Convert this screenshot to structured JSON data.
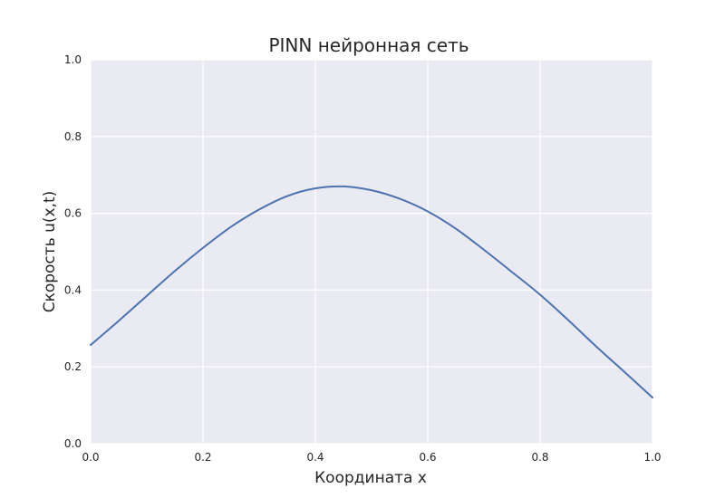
{
  "chart_data": {
    "type": "line",
    "title": "PINN нейронная сеть",
    "xlabel": "Координата x",
    "ylabel": "Скорость u(x,t)",
    "xlim": [
      0,
      1
    ],
    "ylim": [
      0,
      1
    ],
    "xticks": [
      "0.0",
      "0.2",
      "0.4",
      "0.6",
      "0.8",
      "1.0"
    ],
    "yticks": [
      "0.0",
      "0.2",
      "0.4",
      "0.6",
      "0.8",
      "1.0"
    ],
    "grid": true,
    "background_color": "#eaeaf2",
    "series": [
      {
        "color": "#4c72b0",
        "x": [
          0.0,
          0.05,
          0.1,
          0.15,
          0.2,
          0.25,
          0.3,
          0.35,
          0.4,
          0.45,
          0.5,
          0.55,
          0.6,
          0.65,
          0.7,
          0.75,
          0.8,
          0.85,
          0.9,
          0.95,
          1.0
        ],
        "y": [
          0.257,
          0.32,
          0.385,
          0.45,
          0.51,
          0.565,
          0.61,
          0.645,
          0.665,
          0.67,
          0.66,
          0.638,
          0.605,
          0.56,
          0.505,
          0.447,
          0.388,
          0.322,
          0.253,
          0.187,
          0.12
        ]
      }
    ]
  }
}
